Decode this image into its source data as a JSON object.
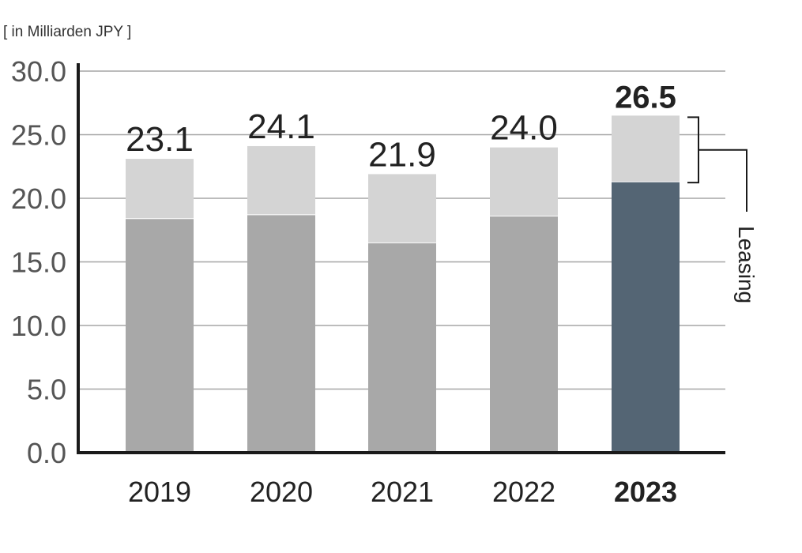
{
  "unit_label": "[ in Milliarden JPY ]",
  "colors": {
    "base": "#a8a8a8",
    "leasing": "#d4d4d4",
    "highlight_base": "#546574",
    "highlight_leasing": "#d4d4d4",
    "axis": "#1a1a1a",
    "grid": "#a6a6a6",
    "text": "#222222"
  },
  "chart_data": {
    "type": "bar",
    "stacked": true,
    "categories": [
      "2019",
      "2020",
      "2021",
      "2022",
      "2023"
    ],
    "series": [
      {
        "values": [
          18.4,
          18.7,
          16.5,
          18.6,
          21.3
        ]
      },
      {
        "name": "Leasing",
        "values": [
          4.7,
          5.4,
          5.4,
          5.4,
          5.2
        ]
      }
    ],
    "totals": [
      "23.1",
      "24.1",
      "21.9",
      "24.0",
      "26.5"
    ],
    "highlight_category": "2023",
    "ylim": [
      0,
      30
    ],
    "yticks": [
      "0.0",
      "5.0",
      "10.0",
      "15.0",
      "20.0",
      "25.0",
      "30.0"
    ],
    "grid": true,
    "annotation": "Leasing"
  }
}
